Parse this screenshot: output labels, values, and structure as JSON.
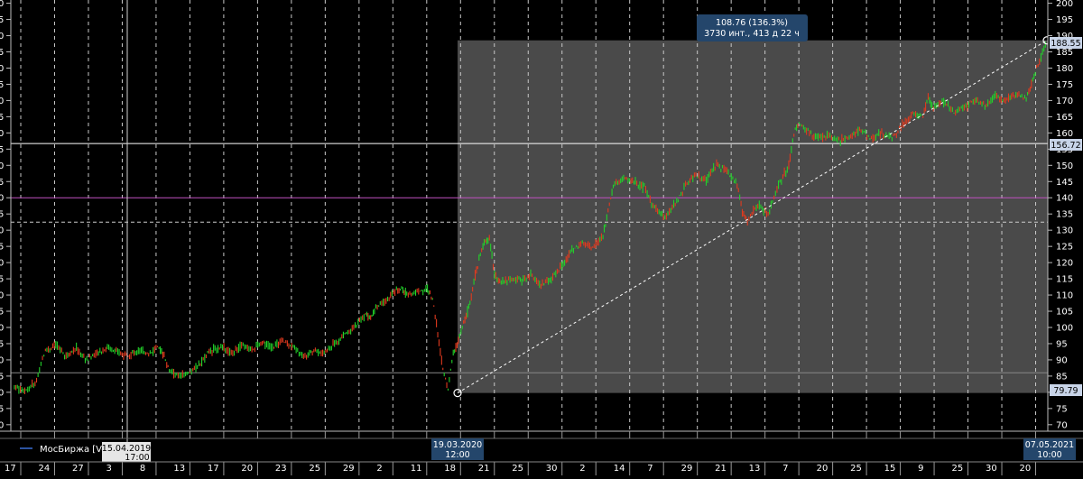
{
  "chart_data": {
    "type": "candlestick",
    "ylim": [
      68,
      201
    ],
    "y_ticks": [
      70,
      75,
      80,
      85,
      90,
      95,
      100,
      105,
      110,
      115,
      120,
      125,
      130,
      135,
      140,
      145,
      150,
      155,
      160,
      165,
      170,
      175,
      180,
      185,
      190,
      195,
      200
    ],
    "x_tick_labels": [
      "17",
      "24",
      "27",
      "3",
      "8",
      "13",
      "17",
      "20",
      "23",
      "25",
      "29",
      "2",
      "11",
      "18",
      "21",
      "25",
      "30",
      "2",
      "14",
      "7",
      "29",
      "21",
      "13",
      "7",
      "20",
      "25",
      "15",
      "9",
      "25",
      "30",
      "20"
    ],
    "legend_text": "МосБиржа [Vol",
    "series_points": [
      [
        0,
        82
      ],
      [
        0.01,
        80.2
      ],
      [
        0.02,
        82.8
      ],
      [
        0.03,
        93
      ],
      [
        0.04,
        94.5
      ],
      [
        0.05,
        91
      ],
      [
        0.06,
        93.5
      ],
      [
        0.07,
        90
      ],
      [
        0.08,
        92
      ],
      [
        0.09,
        94
      ],
      [
        0.1,
        92.5
      ],
      [
        0.11,
        91
      ],
      [
        0.12,
        93
      ],
      [
        0.13,
        92
      ],
      [
        0.14,
        93.5
      ],
      [
        0.145,
        91.5
      ],
      [
        0.15,
        86.5
      ],
      [
        0.16,
        84.8
      ],
      [
        0.17,
        86
      ],
      [
        0.18,
        89
      ],
      [
        0.19,
        92.8
      ],
      [
        0.2,
        94
      ],
      [
        0.21,
        92
      ],
      [
        0.22,
        94.5
      ],
      [
        0.23,
        93
      ],
      [
        0.24,
        95
      ],
      [
        0.25,
        94
      ],
      [
        0.26,
        96
      ],
      [
        0.27,
        94
      ],
      [
        0.28,
        91
      ],
      [
        0.29,
        93
      ],
      [
        0.3,
        92
      ],
      [
        0.31,
        95
      ],
      [
        0.32,
        98
      ],
      [
        0.33,
        100
      ],
      [
        0.34,
        104
      ],
      [
        0.345,
        103
      ],
      [
        0.35,
        106
      ],
      [
        0.36,
        108.5
      ],
      [
        0.37,
        111.5
      ],
      [
        0.375,
        112
      ],
      [
        0.38,
        110
      ],
      [
        0.39,
        111
      ],
      [
        0.4,
        112
      ],
      [
        0.405,
        109
      ],
      [
        0.41,
        98
      ],
      [
        0.415,
        87
      ],
      [
        0.42,
        81
      ],
      [
        0.425,
        92
      ],
      [
        0.43,
        96
      ],
      [
        0.435,
        101
      ],
      [
        0.44,
        106
      ],
      [
        0.445,
        114
      ],
      [
        0.45,
        121
      ],
      [
        0.455,
        126
      ],
      [
        0.46,
        128
      ],
      [
        0.465,
        116
      ],
      [
        0.47,
        114
      ],
      [
        0.48,
        115
      ],
      [
        0.49,
        114.5
      ],
      [
        0.5,
        116
      ],
      [
        0.51,
        113
      ],
      [
        0.52,
        115
      ],
      [
        0.53,
        119
      ],
      [
        0.54,
        124
      ],
      [
        0.55,
        126
      ],
      [
        0.56,
        124.5
      ],
      [
        0.57,
        128
      ],
      [
        0.575,
        136
      ],
      [
        0.58,
        144
      ],
      [
        0.59,
        146
      ],
      [
        0.6,
        145
      ],
      [
        0.61,
        143
      ],
      [
        0.62,
        137
      ],
      [
        0.63,
        134
      ],
      [
        0.64,
        138
      ],
      [
        0.65,
        144
      ],
      [
        0.66,
        147
      ],
      [
        0.67,
        145
      ],
      [
        0.68,
        151
      ],
      [
        0.69,
        148
      ],
      [
        0.7,
        144
      ],
      [
        0.705,
        136
      ],
      [
        0.71,
        133
      ],
      [
        0.72,
        138
      ],
      [
        0.73,
        135
      ],
      [
        0.74,
        144
      ],
      [
        0.75,
        150
      ],
      [
        0.755,
        160
      ],
      [
        0.76,
        163
      ],
      [
        0.77,
        160
      ],
      [
        0.78,
        158.5
      ],
      [
        0.79,
        159
      ],
      [
        0.8,
        157.5
      ],
      [
        0.81,
        159
      ],
      [
        0.82,
        161
      ],
      [
        0.83,
        158
      ],
      [
        0.84,
        160
      ],
      [
        0.85,
        158.5
      ],
      [
        0.86,
        162.5
      ],
      [
        0.87,
        166
      ],
      [
        0.88,
        165
      ],
      [
        0.885,
        171
      ],
      [
        0.89,
        168
      ],
      [
        0.9,
        169.5
      ],
      [
        0.91,
        166.5
      ],
      [
        0.92,
        168
      ],
      [
        0.93,
        170
      ],
      [
        0.94,
        168.5
      ],
      [
        0.95,
        171.5
      ],
      [
        0.96,
        170
      ],
      [
        0.97,
        172
      ],
      [
        0.98,
        170.5
      ],
      [
        0.985,
        175
      ],
      [
        0.99,
        180
      ],
      [
        1.0,
        188.5
      ]
    ],
    "selection": {
      "measure_label": "108.76 (136.3%)",
      "measure_sublabel": "3730 инт., 413 д 22 ч",
      "start_price": 79.79,
      "end_price": 188.55,
      "start_date": "19.03.2020",
      "start_time": "12:00",
      "end_date": "07.05.2021",
      "end_time": "10:00"
    },
    "horizontal_levels": [
      {
        "price": 156.72,
        "label": "156.72",
        "color": "#ffffff",
        "style": "solid"
      },
      {
        "price": 140,
        "label": "",
        "color": "#c050c0",
        "style": "solid"
      },
      {
        "price": 132.5,
        "label": "",
        "color": "#cccccc",
        "style": "dashed"
      },
      {
        "price": 86,
        "label": "",
        "color": "#888888",
        "style": "solid"
      }
    ],
    "crosshair": {
      "date": "15.04.2019",
      "time": "17:00"
    }
  }
}
